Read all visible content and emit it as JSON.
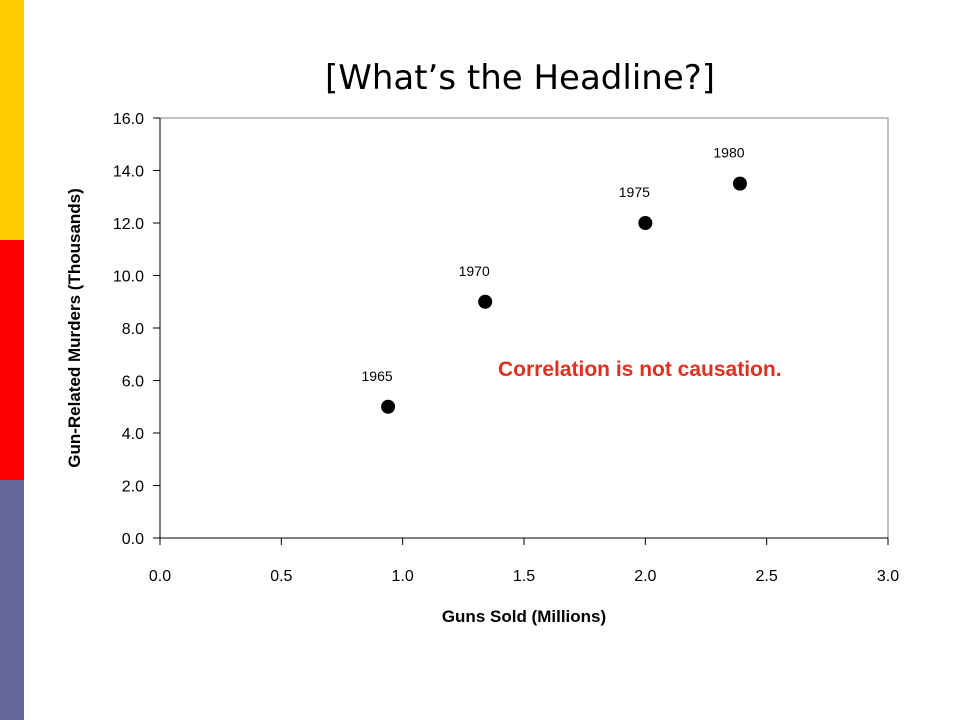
{
  "slide": {
    "title": "[What’s the Headline?]",
    "stripes": [
      {
        "color": "#FFCC00"
      },
      {
        "color": "#FF0000"
      },
      {
        "color": "#666699"
      }
    ]
  },
  "chart_data": {
    "type": "scatter",
    "title": "[What’s the Headline?]",
    "xlabel": "Guns Sold (Millions)",
    "ylabel": "Gun-Related Murders (Thousands)",
    "xlim": [
      0,
      3
    ],
    "ylim": [
      0,
      16
    ],
    "xticks": [
      "0.0",
      "0.5",
      "1.0",
      "1.5",
      "2.0",
      "2.5",
      "3.0"
    ],
    "yticks": [
      "0.0",
      "2.0",
      "4.0",
      "6.0",
      "8.0",
      "10.0",
      "12.0",
      "14.0",
      "16.0"
    ],
    "grid": false,
    "marker_color": "#000000",
    "points": [
      {
        "label": "1965",
        "x": 0.94,
        "y": 5.0
      },
      {
        "label": "1970",
        "x": 1.34,
        "y": 9.0
      },
      {
        "label": "1975",
        "x": 2.0,
        "y": 12.0
      },
      {
        "label": "1980",
        "x": 2.39,
        "y": 13.5
      }
    ],
    "annotation": {
      "text": "Correlation is not causation.",
      "color": "#E03020"
    }
  }
}
